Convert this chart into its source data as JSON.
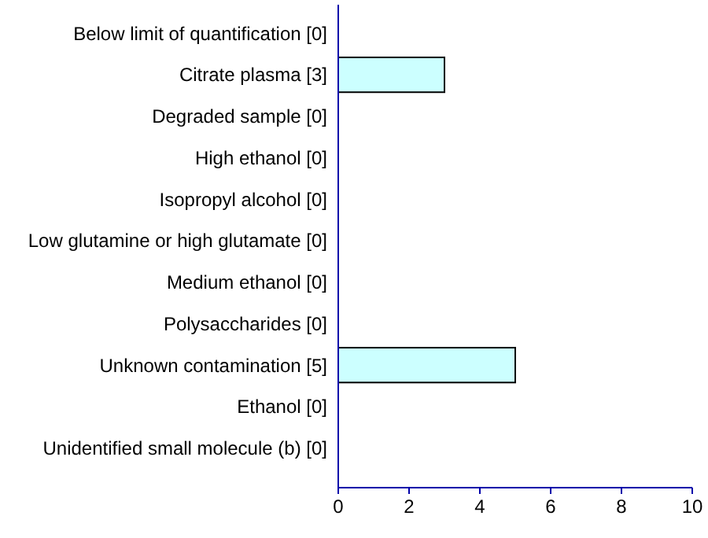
{
  "chart_data": {
    "type": "bar",
    "orientation": "horizontal",
    "categories": [
      "Below limit of quantification [0]",
      "Citrate plasma [3]",
      "Degraded sample [0]",
      "High ethanol [0]",
      "Isopropyl alcohol [0]",
      "Low glutamine or high glutamate [0]",
      "Medium ethanol [0]",
      "Polysaccharides [0]",
      "Unknown contamination [5]",
      "Ethanol [0]",
      "Unidentified small molecule (b) [0]"
    ],
    "values": [
      0,
      3,
      0,
      0,
      0,
      0,
      0,
      0,
      5,
      0,
      0
    ],
    "color": "#ccffff",
    "xlim": [
      0,
      10
    ],
    "xticks": [
      0,
      2,
      4,
      6,
      8,
      10
    ],
    "grid": false
  }
}
